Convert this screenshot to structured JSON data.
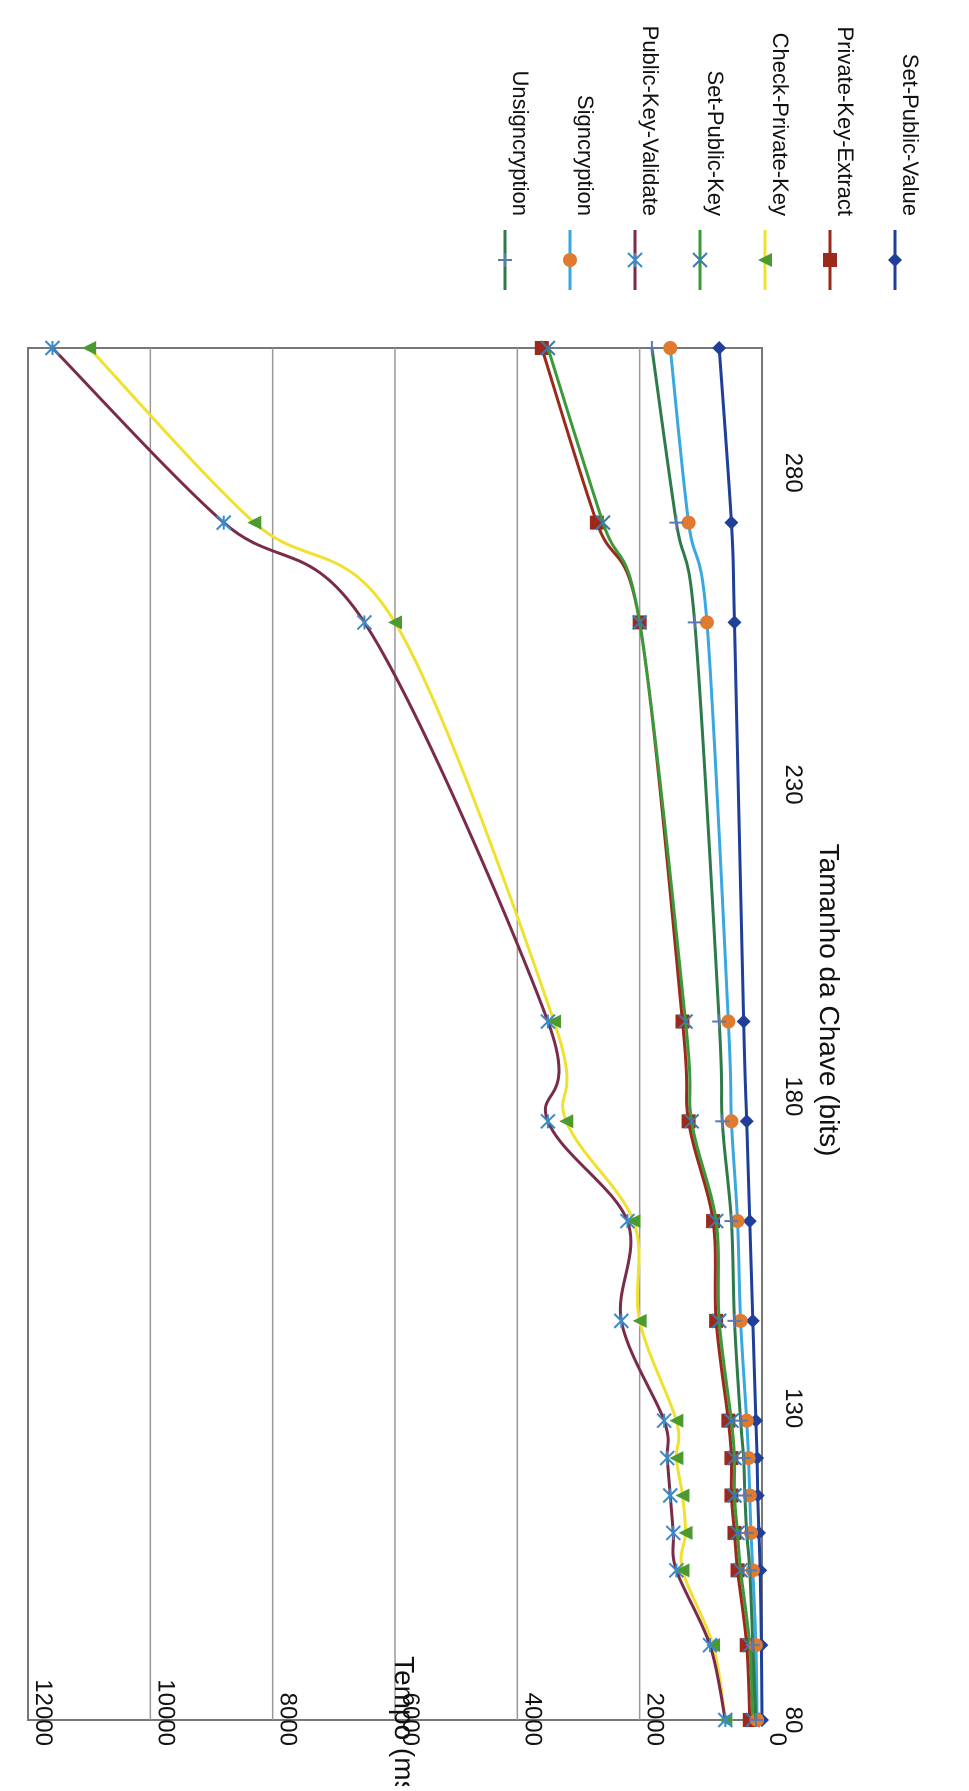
{
  "chart_data": {
    "type": "line",
    "orientation": "rotated-90-clockwise",
    "xlabel": "Tamanho da Chave (bits)",
    "ylabel": "Tempo (ms)",
    "x_ticks": [
      80,
      130,
      180,
      230,
      280
    ],
    "xlim": [
      80,
      300
    ],
    "y_ticks": [
      0,
      2000,
      4000,
      6000,
      8000,
      10000,
      12000
    ],
    "ylim": [
      0,
      12000
    ],
    "grid": "horizontal",
    "legend_position": "right",
    "x": [
      80,
      92,
      104,
      110,
      116,
      122,
      128,
      144,
      160,
      176,
      192,
      256,
      272,
      300
    ],
    "series": [
      {
        "name": "Set-Public-Value",
        "color": "#1f3f99",
        "marker": "diamond",
        "values": [
          0,
          10,
          30,
          50,
          70,
          80,
          100,
          150,
          200,
          250,
          300,
          450,
          500,
          700
        ]
      },
      {
        "name": "Private-Key-Extract",
        "color": "#9b2a1c",
        "marker": "square",
        "values": [
          200,
          250,
          400,
          450,
          500,
          500,
          550,
          750,
          800,
          1200,
          1300,
          2000,
          2700,
          3600
        ]
      },
      {
        "name": "Check-Private-Key",
        "color": "#f0e030",
        "marker": "triangle",
        "values": [
          600,
          800,
          1300,
          1250,
          1300,
          1400,
          1400,
          2000,
          2100,
          3200,
          3400,
          6000,
          8300,
          11000
        ]
      },
      {
        "name": "Set-Public-Key",
        "color": "#3a9a3a",
        "marker": "x",
        "values": [
          150,
          200,
          350,
          400,
          450,
          450,
          500,
          700,
          750,
          1150,
          1250,
          2000,
          2600,
          3500
        ]
      },
      {
        "name": "Public-Key-Validate",
        "color": "#7a2a4a",
        "marker": "star",
        "values": [
          600,
          850,
          1400,
          1450,
          1500,
          1550,
          1600,
          2300,
          2200,
          3500,
          3500,
          6500,
          8800,
          11600
        ]
      },
      {
        "name": "Signcryption",
        "color": "#3aa8e0",
        "marker": "circle",
        "values": [
          80,
          100,
          150,
          180,
          200,
          220,
          250,
          350,
          400,
          500,
          550,
          900,
          1200,
          1500
        ]
      },
      {
        "name": "Unsigncryption",
        "color": "#2e7a4a",
        "marker": "plus",
        "values": [
          100,
          150,
          200,
          250,
          280,
          300,
          350,
          450,
          500,
          650,
          700,
          1100,
          1400,
          1800
        ]
      }
    ]
  }
}
